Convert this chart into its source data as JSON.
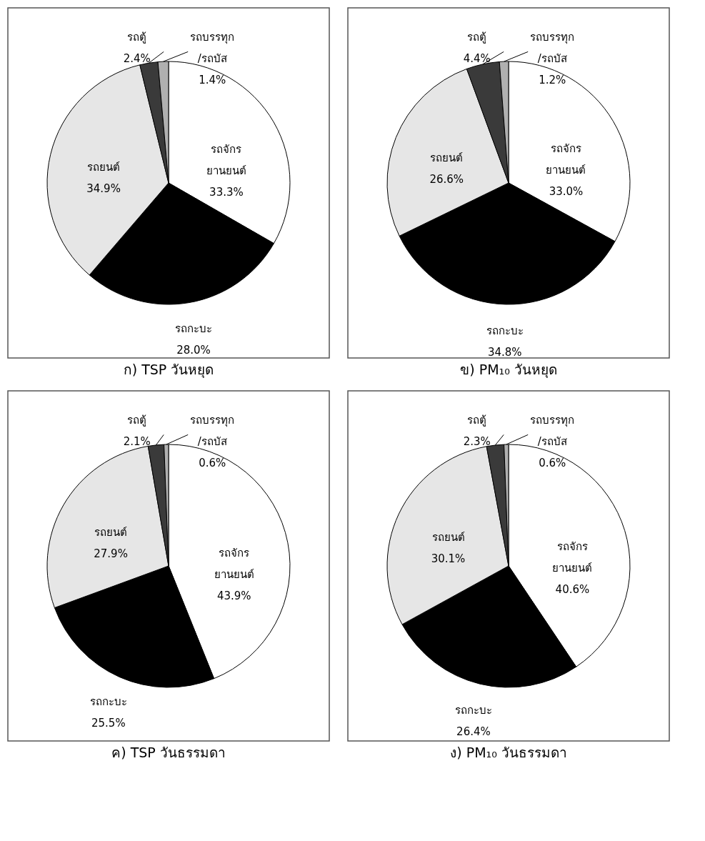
{
  "chart_data": [
    {
      "type": "pie",
      "title": "ก) TSP  วันหยุด",
      "categories": [
        "รถจักร\nยานยนต์",
        "รถกะบะ",
        "รถยนต์",
        "รถตู้",
        "รถบรรทุก\n/รถบัส"
      ],
      "values": [
        33.3,
        28.0,
        34.9,
        2.4,
        1.4
      ],
      "value_labels": [
        "33.3%",
        "28.0%",
        "34.9%",
        "2.4%",
        "1.4%"
      ],
      "colors": [
        "#ffffff",
        "#000000",
        "#e6e6e6",
        "#3a3a3a",
        "#b0b0b0"
      ],
      "legend": false
    },
    {
      "type": "pie",
      "title": "ข) PM₁₀  วันหยุด",
      "categories": [
        "รถจักร\nยานยนต์",
        "รถกะบะ",
        "รถยนต์",
        "รถตู้",
        "รถบรรทุก\n/รถบัส"
      ],
      "values": [
        33.0,
        34.8,
        26.6,
        4.4,
        1.2
      ],
      "value_labels": [
        "33.0%",
        "34.8%",
        "26.6%",
        "4.4%",
        "1.2%"
      ],
      "colors": [
        "#ffffff",
        "#000000",
        "#e6e6e6",
        "#3a3a3a",
        "#b0b0b0"
      ],
      "legend": false
    },
    {
      "type": "pie",
      "title": "ค) TSP  วันธรรมดา",
      "categories": [
        "รถจักร\nยานยนต์",
        "รถกะบะ",
        "รถยนต์",
        "รถตู้",
        "รถบรรทุก\n/รถบัส"
      ],
      "values": [
        43.9,
        25.5,
        27.9,
        2.1,
        0.6
      ],
      "value_labels": [
        "43.9%",
        "25.5%",
        "27.9%",
        "2.1%",
        "0.6%"
      ],
      "colors": [
        "#ffffff",
        "#000000",
        "#e6e6e6",
        "#3a3a3a",
        "#b0b0b0"
      ],
      "legend": false
    },
    {
      "type": "pie",
      "title": "ง) PM₁₀  วันธรรมดา",
      "categories": [
        "รถจักร\nยานยนต์",
        "รถกะบะ",
        "รถยนต์",
        "รถตู้",
        "รถบรรทุก\n/รถบัส"
      ],
      "values": [
        40.6,
        26.4,
        30.1,
        2.3,
        0.6
      ],
      "value_labels": [
        "40.6%",
        "26.4%",
        "30.1%",
        "2.3%",
        "0.6%"
      ],
      "colors": [
        "#ffffff",
        "#000000",
        "#e6e6e6",
        "#3a3a3a",
        "#b0b0b0"
      ],
      "legend": false
    }
  ]
}
